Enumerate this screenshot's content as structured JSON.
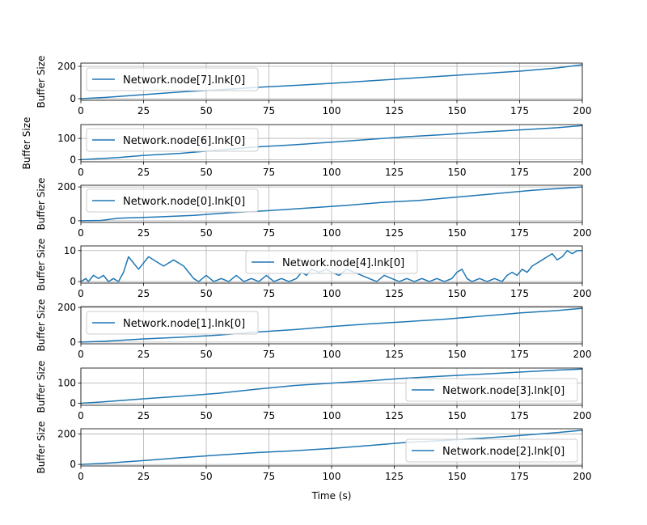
{
  "chart_data": [
    {
      "type": "line",
      "series": [
        {
          "name": "Network.node[7].lnk[0]",
          "x": [
            0,
            10,
            25,
            40,
            55,
            70,
            85,
            100,
            115,
            130,
            145,
            160,
            175,
            190,
            200
          ],
          "y": [
            0,
            8,
            25,
            42,
            55,
            70,
            82,
            95,
            110,
            125,
            140,
            155,
            170,
            190,
            210
          ]
        }
      ],
      "ylabel": "Buffer Size",
      "xlabel": "",
      "xlim": [
        0,
        200
      ],
      "ylim": [
        -10,
        220
      ],
      "xticks": [
        0,
        25,
        50,
        75,
        100,
        125,
        150,
        175,
        200
      ],
      "yticks": [
        0,
        200
      ],
      "grid": true,
      "legend": "upper left"
    },
    {
      "type": "line",
      "series": [
        {
          "name": "Network.node[6].lnk[0]",
          "x": [
            0,
            15,
            25,
            40,
            55,
            70,
            85,
            100,
            115,
            130,
            145,
            160,
            175,
            190,
            200
          ],
          "y": [
            0,
            10,
            20,
            30,
            45,
            60,
            70,
            82,
            95,
            108,
            118,
            130,
            140,
            150,
            160
          ]
        }
      ],
      "ylabel": "Buffer Size",
      "xlabel": "",
      "xlim": [
        0,
        200
      ],
      "ylim": [
        -10,
        165
      ],
      "xticks": [
        0,
        25,
        50,
        75,
        100,
        125,
        150,
        175,
        200
      ],
      "yticks": [
        0,
        100
      ],
      "grid": true,
      "legend": "upper left"
    },
    {
      "type": "line",
      "series": [
        {
          "name": "Network.node[0].lnk[0]",
          "x": [
            0,
            8,
            15,
            30,
            45,
            60,
            75,
            90,
            105,
            120,
            135,
            150,
            165,
            180,
            200
          ],
          "y": [
            0,
            2,
            15,
            22,
            32,
            48,
            60,
            75,
            90,
            108,
            120,
            140,
            160,
            180,
            200
          ]
        }
      ],
      "ylabel": "Buffer Size",
      "xlabel": "",
      "xlim": [
        0,
        200
      ],
      "ylim": [
        -10,
        210
      ],
      "xticks": [
        0,
        25,
        50,
        75,
        100,
        125,
        150,
        175,
        200
      ],
      "yticks": [
        0,
        200
      ],
      "grid": true,
      "legend": "upper left"
    },
    {
      "type": "line",
      "series": [
        {
          "name": "Network.node[4].lnk[0]",
          "x": [
            0,
            2,
            3,
            5,
            7,
            9,
            11,
            13,
            15,
            17,
            19,
            21,
            23,
            25,
            27,
            29,
            31,
            33,
            35,
            37,
            39,
            41,
            43,
            45,
            47,
            50,
            53,
            56,
            59,
            62,
            65,
            68,
            71,
            74,
            77,
            80,
            83,
            86,
            88,
            90,
            92,
            95,
            98,
            100,
            103,
            106,
            109,
            112,
            115,
            118,
            121,
            124,
            127,
            130,
            133,
            136,
            139,
            142,
            145,
            148,
            150,
            152,
            154,
            156,
            159,
            162,
            165,
            168,
            170,
            172,
            174,
            176,
            178,
            180,
            182,
            184,
            186,
            188,
            190,
            192,
            194,
            196,
            198,
            200
          ],
          "y": [
            0,
            1,
            0,
            2,
            1,
            2,
            0,
            1,
            0,
            3,
            8,
            6,
            4,
            6,
            8,
            7,
            6,
            5,
            6,
            7,
            6,
            5,
            3,
            1,
            0,
            2,
            0,
            1,
            0,
            2,
            0,
            1,
            0,
            2,
            0,
            1,
            0,
            1,
            3,
            2,
            4,
            3,
            4,
            3,
            2,
            4,
            3,
            2,
            1,
            0,
            2,
            1,
            0,
            1,
            0,
            1,
            0,
            1,
            0,
            1,
            3,
            4,
            1,
            0,
            1,
            0,
            1,
            0,
            2,
            3,
            2,
            4,
            3,
            5,
            6,
            7,
            8,
            9,
            7,
            8,
            10,
            9,
            10,
            10
          ]
        }
      ],
      "ylabel": "Buffer Size",
      "xlabel": "",
      "xlim": [
        0,
        200
      ],
      "ylim": [
        -0.5,
        11.5
      ],
      "xticks": [
        0,
        25,
        50,
        75,
        100,
        125,
        150,
        175,
        200
      ],
      "yticks": [
        0,
        10
      ],
      "grid": true,
      "legend": "upper center"
    },
    {
      "type": "line",
      "series": [
        {
          "name": "Network.node[1].lnk[0]",
          "x": [
            0,
            10,
            25,
            40,
            55,
            70,
            85,
            100,
            115,
            130,
            145,
            160,
            175,
            190,
            200
          ],
          "y": [
            0,
            5,
            18,
            28,
            40,
            58,
            72,
            90,
            105,
            118,
            132,
            150,
            168,
            182,
            195
          ]
        }
      ],
      "ylabel": "Buffer Size",
      "xlabel": "",
      "xlim": [
        0,
        200
      ],
      "ylim": [
        -10,
        205
      ],
      "xticks": [
        0,
        25,
        50,
        75,
        100,
        125,
        150,
        175,
        200
      ],
      "yticks": [
        0,
        200
      ],
      "grid": true,
      "legend": "upper left"
    },
    {
      "type": "line",
      "series": [
        {
          "name": "Network.node[3].lnk[0]",
          "x": [
            0,
            10,
            25,
            40,
            55,
            70,
            85,
            100,
            115,
            130,
            145,
            160,
            175,
            190,
            200
          ],
          "y": [
            0,
            8,
            22,
            35,
            50,
            70,
            88,
            100,
            112,
            125,
            135,
            145,
            155,
            165,
            170
          ]
        }
      ],
      "ylabel": "Buffer Size",
      "xlabel": "",
      "xlim": [
        0,
        200
      ],
      "ylim": [
        -10,
        175
      ],
      "xticks": [
        0,
        25,
        50,
        75,
        100,
        125,
        150,
        175,
        200
      ],
      "yticks": [
        0,
        100
      ],
      "grid": true,
      "legend": "lower right"
    },
    {
      "type": "line",
      "series": [
        {
          "name": "Network.node[2].lnk[0]",
          "x": [
            0,
            10,
            25,
            40,
            55,
            70,
            85,
            100,
            115,
            130,
            145,
            160,
            175,
            190,
            200
          ],
          "y": [
            0,
            8,
            25,
            45,
            62,
            78,
            90,
            105,
            125,
            145,
            158,
            172,
            190,
            210,
            225
          ]
        }
      ],
      "ylabel": "Buffer Size",
      "xlabel": "Time (s)",
      "xlim": [
        0,
        200
      ],
      "ylim": [
        -10,
        235
      ],
      "xticks": [
        0,
        25,
        50,
        75,
        100,
        125,
        150,
        175,
        200
      ],
      "yticks": [
        0,
        200
      ],
      "grid": true,
      "legend": "lower right"
    }
  ]
}
